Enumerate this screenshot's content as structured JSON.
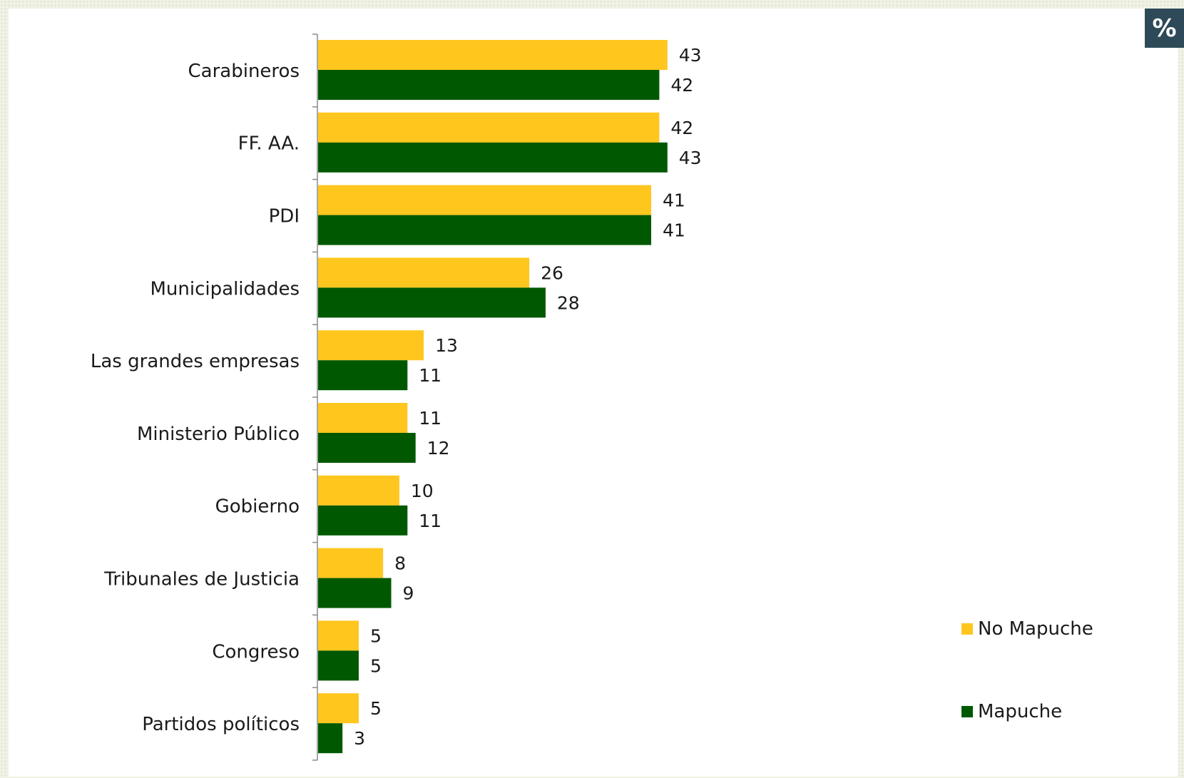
{
  "badge": "%",
  "chart_data": {
    "type": "bar",
    "orientation": "horizontal",
    "categories": [
      "Carabineros",
      "FF. AA.",
      "PDI",
      "Municipalidades",
      "Las grandes empresas",
      "Ministerio Público",
      "Gobierno",
      "Tribunales de Justicia",
      "Congreso",
      "Partidos políticos"
    ],
    "series": [
      {
        "name": "No Mapuche",
        "color": "#ffc61e",
        "values": [
          43,
          42,
          41,
          26,
          13,
          11,
          10,
          8,
          5,
          5
        ]
      },
      {
        "name": "Mapuche",
        "color": "#005900",
        "values": [
          42,
          43,
          41,
          28,
          11,
          12,
          11,
          9,
          5,
          3
        ]
      }
    ],
    "xlim": [
      0,
      100
    ],
    "data_labels": true,
    "grid": false,
    "legend_position": "bottom-right"
  }
}
